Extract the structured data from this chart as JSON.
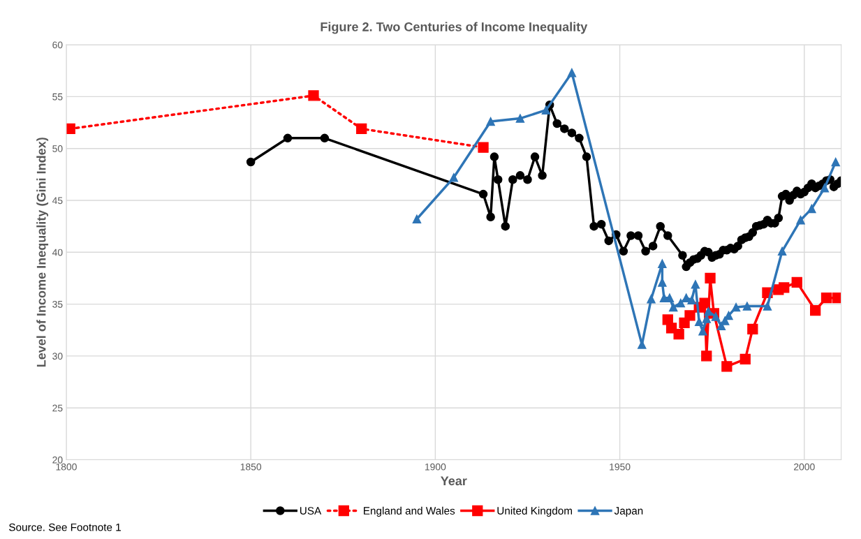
{
  "chart_data": {
    "type": "line",
    "title": "Figure 2. Two Centuries of Income Inequality",
    "xlabel": "Year",
    "ylabel": "Level of Income Inequality (Gini Index)",
    "xlim": [
      1800,
      2010
    ],
    "xticks": [
      1800,
      1850,
      1900,
      1950,
      2000
    ],
    "ylim": [
      20,
      60
    ],
    "yticks": [
      20,
      25,
      30,
      35,
      40,
      45,
      50,
      55,
      60
    ],
    "grid": true,
    "legend": "bottom",
    "annotations": [
      "Source. See Footnote 1"
    ],
    "series": [
      {
        "name": "USA",
        "color": "#000000",
        "marker": "circle",
        "line_style": "solid",
        "x": [
          1850,
          1860,
          1870,
          1913,
          1915,
          1916,
          1917,
          1919,
          1921,
          1923,
          1925,
          1927,
          1929,
          1931,
          1933,
          1935,
          1937,
          1939,
          1941,
          1943,
          1945,
          1947,
          1949,
          1951,
          1953,
          1955,
          1957,
          1959,
          1961,
          1963,
          1967,
          1968,
          1969,
          1970,
          1971,
          1972,
          1973,
          1974,
          1975,
          1976,
          1977,
          1978,
          1979,
          1980,
          1981,
          1982,
          1983,
          1984,
          1985,
          1986,
          1987,
          1988,
          1989,
          1990,
          1991,
          1992,
          1993,
          1994,
          1995,
          1996,
          1997,
          1998,
          1999,
          2000,
          2001,
          2002,
          2003,
          2004,
          2005,
          2006,
          2007,
          2008,
          2009,
          2010
        ],
        "values": [
          48.7,
          51.0,
          51.0,
          45.6,
          43.4,
          49.2,
          47.0,
          42.5,
          47.0,
          47.4,
          47.0,
          49.2,
          47.4,
          54.2,
          52.4,
          51.9,
          51.5,
          51.0,
          49.2,
          42.5,
          42.7,
          41.1,
          41.7,
          40.1,
          41.6,
          41.6,
          40.1,
          40.6,
          42.5,
          41.6,
          39.7,
          38.6,
          39.0,
          39.3,
          39.4,
          39.7,
          40.1,
          40.0,
          39.5,
          39.7,
          39.8,
          40.2,
          40.2,
          40.4,
          40.3,
          40.6,
          41.2,
          41.4,
          41.5,
          41.9,
          42.5,
          42.6,
          42.7,
          43.1,
          42.8,
          42.8,
          43.3,
          45.4,
          45.6,
          45.0,
          45.5,
          45.9,
          45.6,
          45.8,
          46.2,
          46.6,
          46.2,
          46.4,
          46.6,
          46.9,
          47.0,
          46.3,
          46.6,
          46.9
        ]
      },
      {
        "name": "England and Wales",
        "color": "#ff0000",
        "marker": "square",
        "line_style": "dotted",
        "x": [
          1801,
          1867,
          1880,
          1913
        ],
        "values": [
          51.9,
          55.1,
          51.9,
          50.1
        ]
      },
      {
        "name": "United Kingdom",
        "color": "#ff0000",
        "marker": "square",
        "line_style": "solid",
        "x": [
          1963,
          1964,
          1966,
          1967.5,
          1969,
          1971.5,
          1973,
          1973.5,
          1974.5,
          1975.5,
          1979,
          1984,
          1986,
          1990,
          1993,
          1994.5,
          1998,
          2003,
          2006,
          2009
        ],
        "values": [
          33.5,
          32.7,
          32.1,
          33.2,
          33.9,
          34.7,
          35.1,
          30.0,
          37.5,
          34.1,
          29.0,
          29.7,
          32.6,
          36.1,
          36.4,
          36.6,
          37.1,
          34.4,
          35.6,
          35.6
        ]
      },
      {
        "name": "Japan",
        "color": "#2e75b6",
        "marker": "triangle",
        "line_style": "solid",
        "x": [
          1895,
          1905,
          1915,
          1923,
          1930,
          1937,
          1956,
          1958.5,
          1961.5,
          1961.5,
          1962,
          1963.5,
          1964.5,
          1966.5,
          1968,
          1969.5,
          1970.5,
          1971.5,
          1972.5,
          1973.5,
          1974,
          1976,
          1977.5,
          1978.5,
          1979.5,
          1981.5,
          1984.5,
          1990,
          1994,
          1999,
          2002,
          2005.5,
          2008.5
        ],
        "values": [
          43.2,
          47.2,
          52.6,
          52.9,
          53.7,
          57.3,
          31.1,
          35.5,
          38.9,
          37.1,
          35.6,
          35.6,
          34.7,
          35.1,
          35.6,
          35.4,
          36.9,
          33.3,
          32.4,
          33.6,
          34.3,
          33.8,
          32.9,
          33.4,
          33.9,
          34.7,
          34.8,
          34.8,
          40.1,
          43.1,
          44.2,
          46.2,
          48.7
        ]
      }
    ]
  }
}
